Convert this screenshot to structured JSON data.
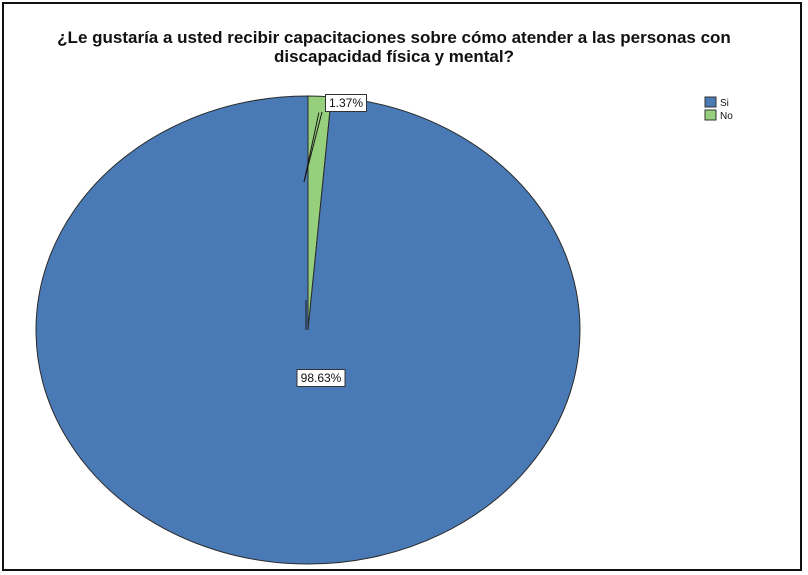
{
  "chart_data": {
    "type": "pie",
    "title": "¿Le gustaría a usted recibir capacitaciones sobre cómo atender a las personas con discapacidad  física y mental?",
    "categories": [
      "Si",
      "No"
    ],
    "values": [
      98.63,
      1.37
    ],
    "data_labels": [
      "98.63%",
      "1.37%"
    ],
    "colors": [
      "#4a7ab5",
      "#96d07c"
    ],
    "legend": {
      "placement": "top-right",
      "entries": [
        "Si",
        "No"
      ]
    }
  }
}
